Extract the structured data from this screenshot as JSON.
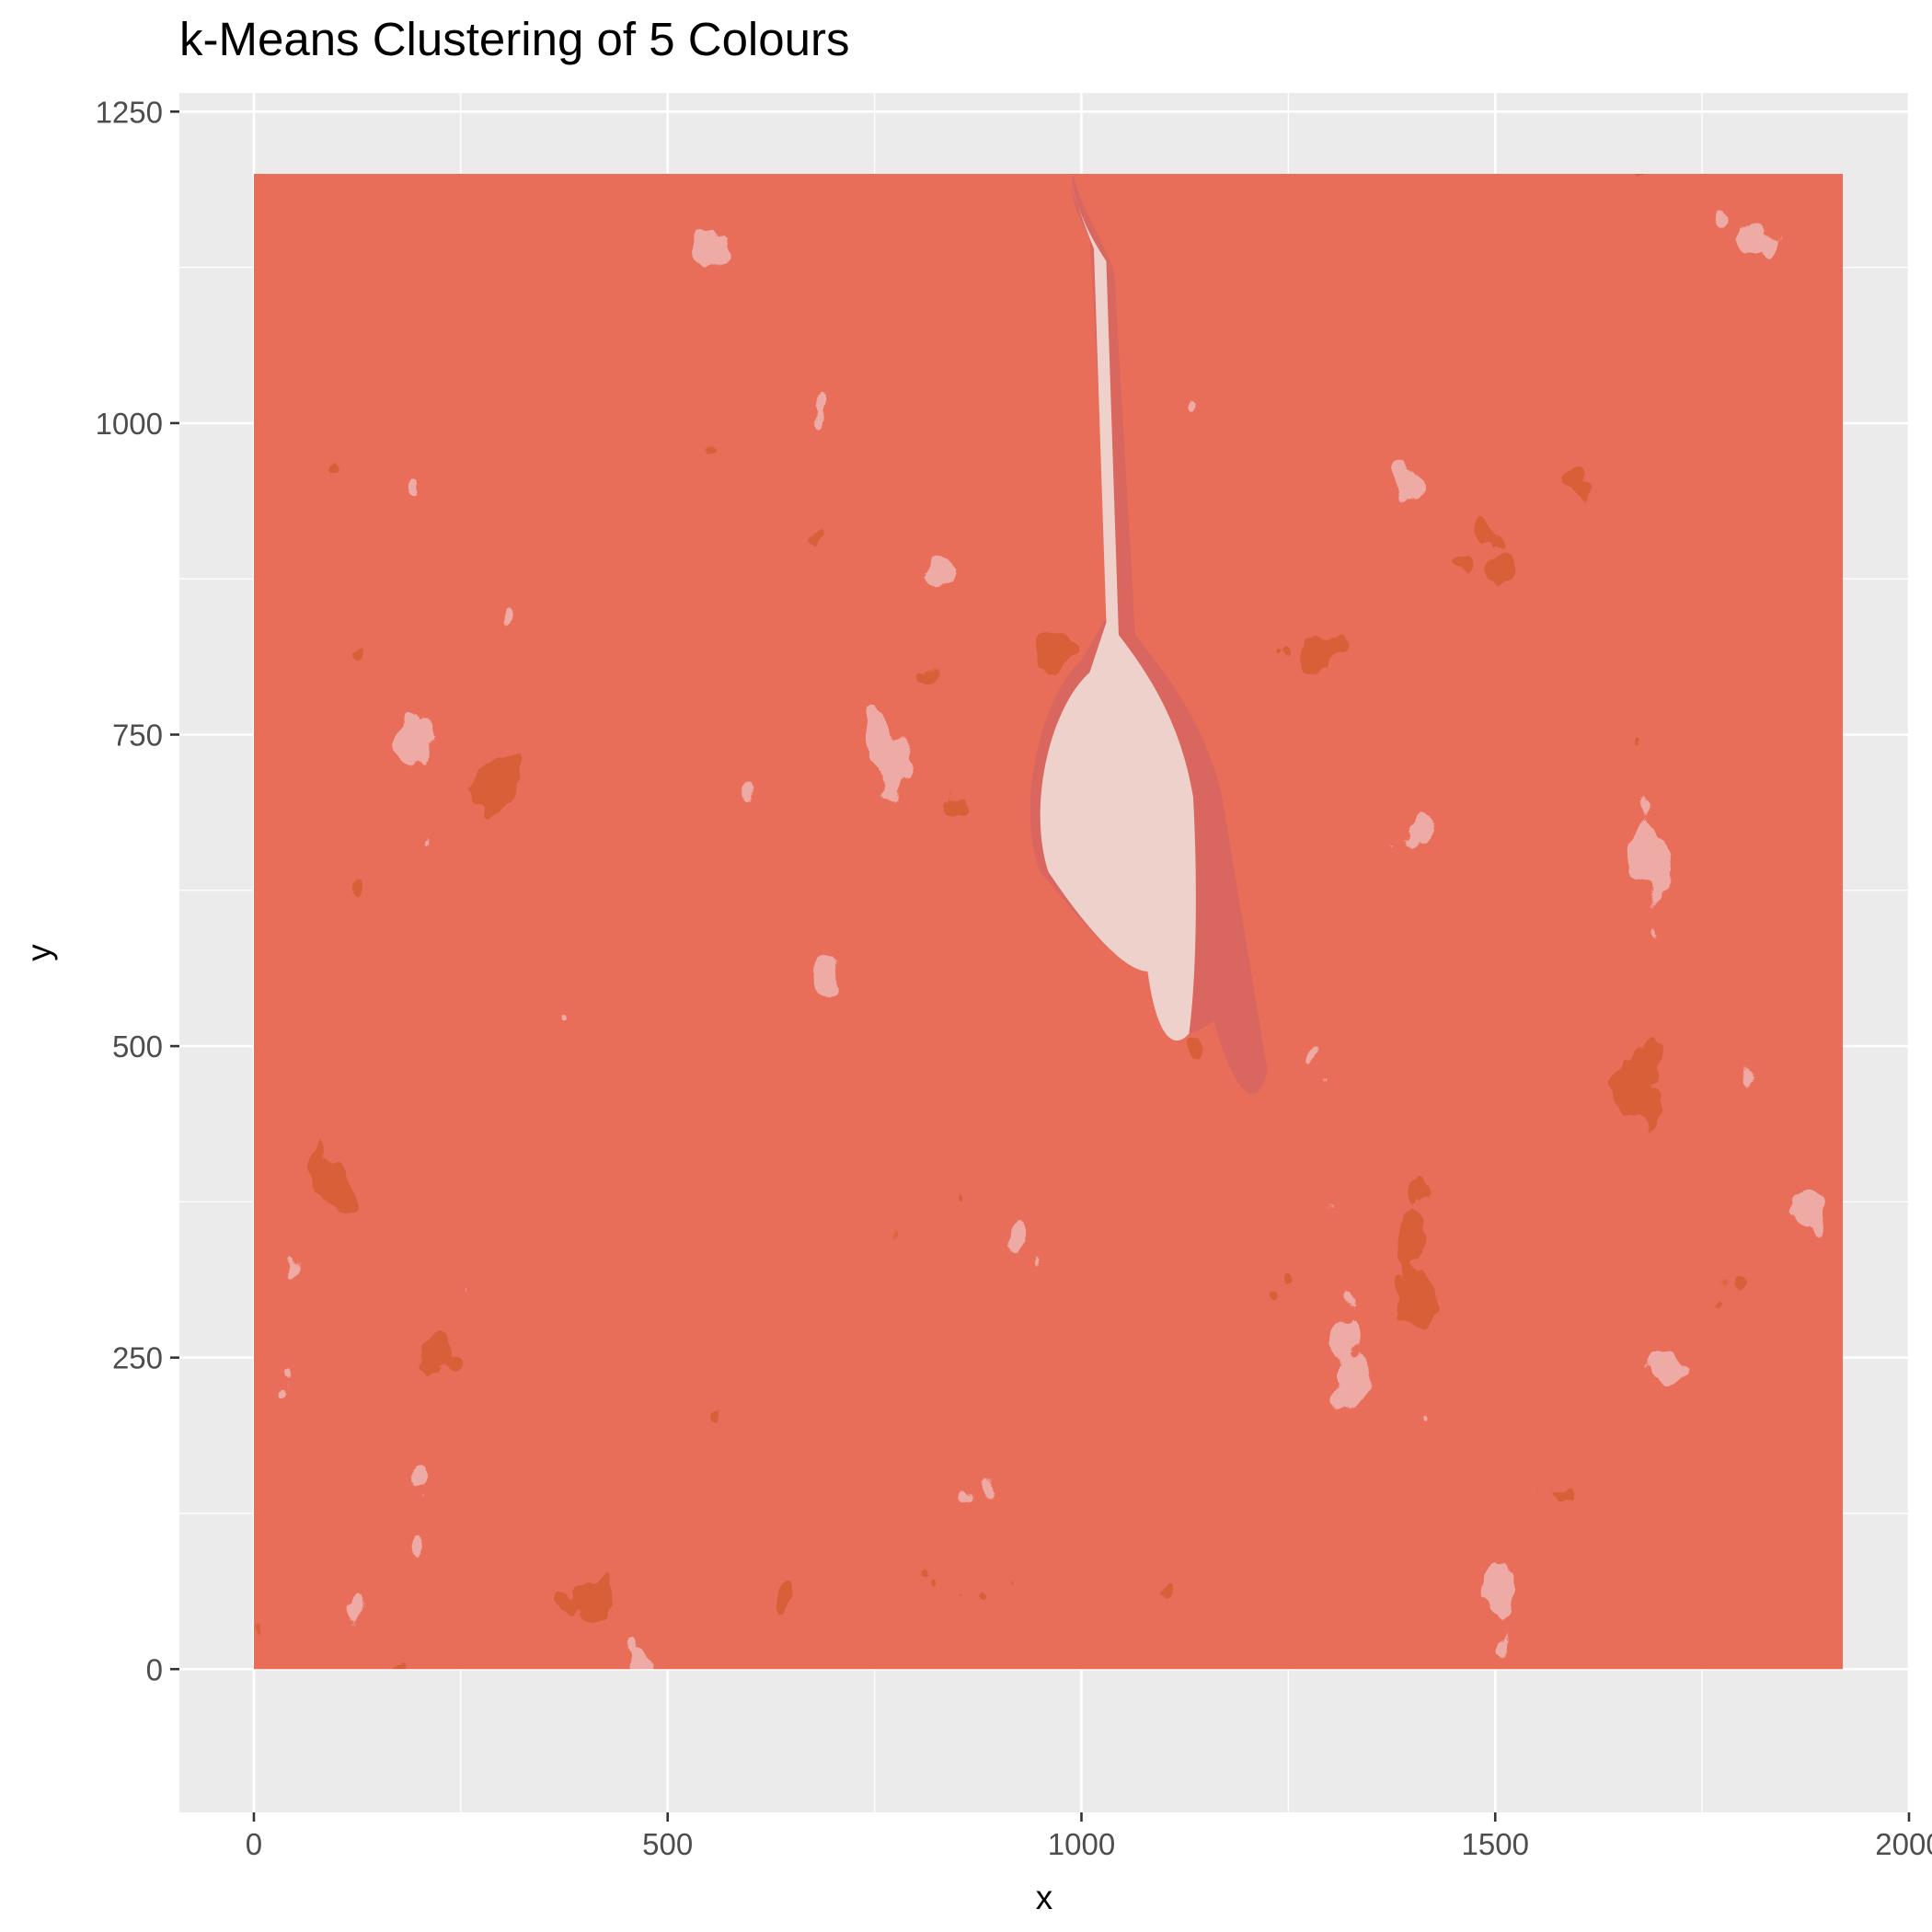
{
  "chart_data": {
    "type": "heatmap",
    "title": "k-Means Clustering of 5 Colours",
    "xlabel": "x",
    "ylabel": "y",
    "xlim": [
      -90,
      2000
    ],
    "ylim": [
      -115,
      1265
    ],
    "x_ticks": [
      0,
      500,
      1000,
      1500,
      2000
    ],
    "y_ticks": [
      0,
      250,
      500,
      750,
      1000,
      1250
    ],
    "x_minor": [
      250,
      750,
      1250,
      1750
    ],
    "y_minor": [
      125,
      375,
      625,
      875,
      1125
    ],
    "image_extent": {
      "x": [
        0,
        1920
      ],
      "y": [
        0,
        1200
      ]
    },
    "grid": true,
    "legend": "none",
    "cluster_colours": [
      "#7b1508",
      "#b01d0b",
      "#d0281a",
      "#d9675f",
      "#eed1cb"
    ],
    "panel_background": "#ebebeb",
    "grid_colour": "#ffffff"
  }
}
